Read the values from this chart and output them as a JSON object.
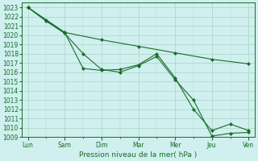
{
  "background_color": "#cff0ee",
  "grid_color": "#b0d8cc",
  "line_color": "#1a6b2a",
  "xlabel": "Pression niveau de la mer( hPa )",
  "ylim": [
    1009,
    1023.5
  ],
  "yticks": [
    1009,
    1010,
    1011,
    1012,
    1013,
    1014,
    1015,
    1016,
    1017,
    1018,
    1019,
    1020,
    1021,
    1022,
    1023
  ],
  "x_labels": [
    "Lun",
    "Sam",
    "Dim",
    "Mar",
    "Mer",
    "Jeu",
    "Ven"
  ],
  "x_tick_pos": [
    0,
    12,
    24,
    36,
    48,
    60,
    72
  ],
  "series1": {
    "x": [
      0,
      6,
      12,
      18,
      24,
      30,
      36,
      42,
      48,
      54,
      60,
      66,
      72
    ],
    "y": [
      1023.0,
      1021.5,
      1020.2,
      1018.0,
      1016.3,
      1016.0,
      1016.7,
      1017.7,
      1015.2,
      1013.0,
      1009.1,
      1009.4,
      1009.5
    ]
  },
  "series2": {
    "x": [
      0,
      6,
      12,
      18,
      24,
      30,
      36,
      42,
      48,
      54,
      60,
      66,
      72
    ],
    "y": [
      1023.0,
      1021.6,
      1020.3,
      1016.4,
      1016.2,
      1016.3,
      1016.8,
      1018.0,
      1015.4,
      1012.0,
      1009.7,
      1010.4,
      1009.7
    ]
  },
  "series3": {
    "x": [
      0,
      12,
      24,
      36,
      48,
      60,
      72
    ],
    "y": [
      1023.0,
      1020.3,
      1019.5,
      1018.8,
      1018.1,
      1017.4,
      1016.9
    ]
  }
}
